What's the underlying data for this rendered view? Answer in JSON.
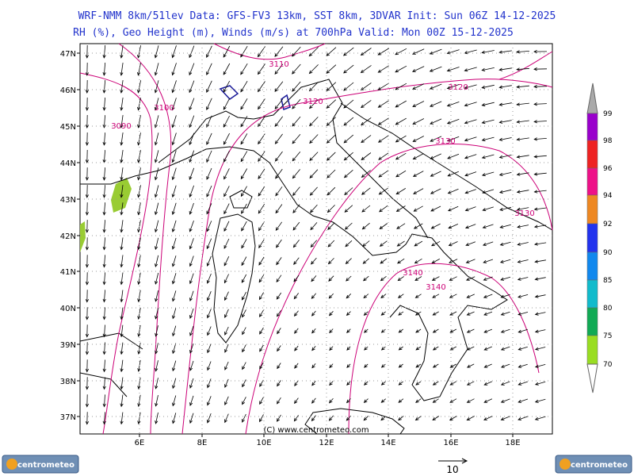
{
  "header": {
    "line1": "WRF-NMM 8km/51lev  Data: GFS-FV3 13km, SST 8km, 3DVAR  Init: Sun 06Z 14-12-2025",
    "line2": "RH (%), Geo Height (m), Winds (m/s) at 700hPa  Valid: Mon 00Z 15-12-2025"
  },
  "map": {
    "lat_labels": [
      "47N",
      "46N",
      "45N",
      "44N",
      "43N",
      "42N",
      "41N",
      "40N",
      "39N",
      "38N",
      "37N"
    ],
    "lon_labels": [
      "6E",
      "8E",
      "10E",
      "12E",
      "14E",
      "16E",
      "18E"
    ],
    "contour_labels": [
      "3110",
      "3120",
      "3120",
      "3100",
      "3090",
      "3130",
      "3130",
      "3140",
      "3140"
    ],
    "copyright": "(C) www.centrometeo.com"
  },
  "colorbar": {
    "labels": [
      "99",
      "98",
      "96",
      "94",
      "92",
      "90",
      "85",
      "80",
      "75",
      "70"
    ]
  },
  "reference_vector": {
    "label": "10"
  },
  "logos": {
    "left": "centrometeo",
    "right": "centrometeo"
  }
}
